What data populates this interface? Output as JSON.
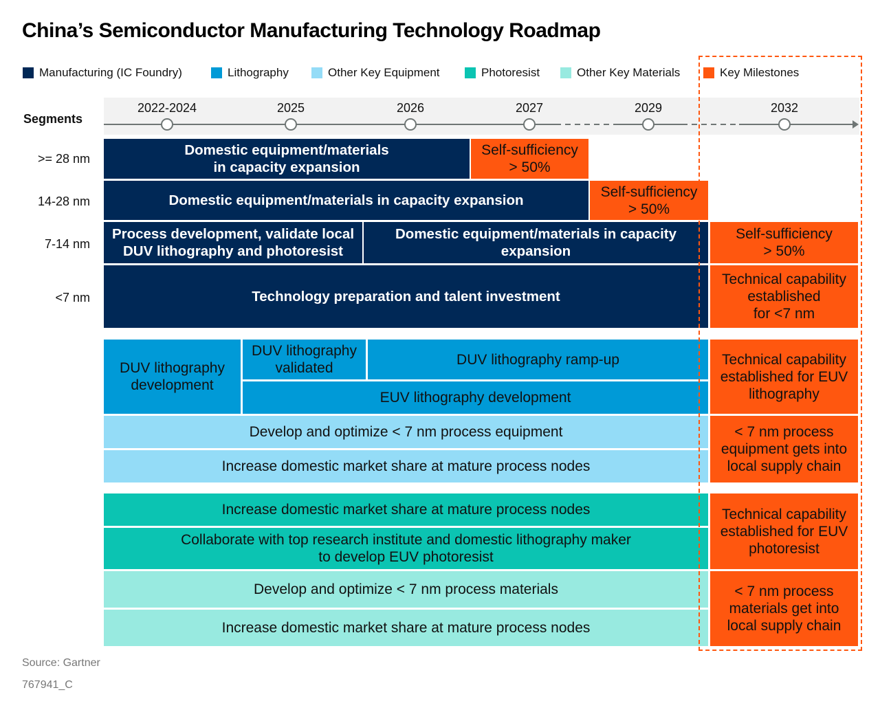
{
  "title": "China’s Semiconductor Manufacturing Technology Roadmap",
  "legend": [
    {
      "label": "Manufacturing (IC Foundry)",
      "color": "#002856"
    },
    {
      "label": "Lithography",
      "color": "#009ad7"
    },
    {
      "label": "Other Key Equipment",
      "color": "#94dcf7"
    },
    {
      "label": "Photoresist",
      "color": "#0bc4b2"
    },
    {
      "label": "Other Key Materials",
      "color": "#98eae0"
    },
    {
      "label": "Key Milestones",
      "color": "#ff570f"
    }
  ],
  "timeline": {
    "segments_label": "Segments",
    "years": [
      "2022-2024",
      "2025",
      "2026",
      "2027",
      "2029",
      "2032"
    ]
  },
  "rows": [
    "&gt;= 28 nm",
    "14-28 nm",
    "7-14 nm",
    "<7 nm"
  ],
  "row_labels": [
    ">= 28 nm",
    "14-28 nm",
    "7-14 nm",
    "<7 nm"
  ],
  "blocks": {
    "r1a": "Domestic equipment/materials\nin capacity expansion",
    "r1m": "Self-sufficiency\n> 50%",
    "r2a": "Domestic equipment/materials in capacity expansion",
    "r2m": "Self-sufficiency\n> 50%",
    "r3a": "Process development, validate local\nDUV lithography and photoresist",
    "r3b": "Domestic equipment/materials in capacity\nexpansion",
    "r3m": "Self-sufficiency\n> 50%",
    "r4a": "Technology preparation and talent investment",
    "r4m": "Technical capability\nestablished\nfor <7 nm",
    "l1": "DUV lithography\ndevelopment",
    "l2": "DUV lithography\nvalidated",
    "l3": "DUV lithography ramp-up",
    "l4": "EUV lithography development",
    "lm": "Technical capability\nestablished for EUV\nlithography",
    "e1": "Develop and optimize < 7 nm process equipment",
    "e2": "Increase domestic market share at mature process nodes",
    "em": "< 7 nm process\nequipment gets into\nlocal supply chain",
    "p1": "Increase domestic market share at mature process nodes",
    "p2": "Collaborate with top research institute and domestic lithography maker\nto develop EUV photoresist",
    "pm": "Technical capability\nestablished for EUV\nphotoresist",
    "m1": "Develop and optimize < 7 nm process materials",
    "m2": "Increase domestic market share at mature process nodes",
    "mm": "< 7 nm process\nmaterials get into\nlocal supply chain"
  },
  "footer": {
    "source": "Source: Gartner",
    "id": "767941_C"
  }
}
